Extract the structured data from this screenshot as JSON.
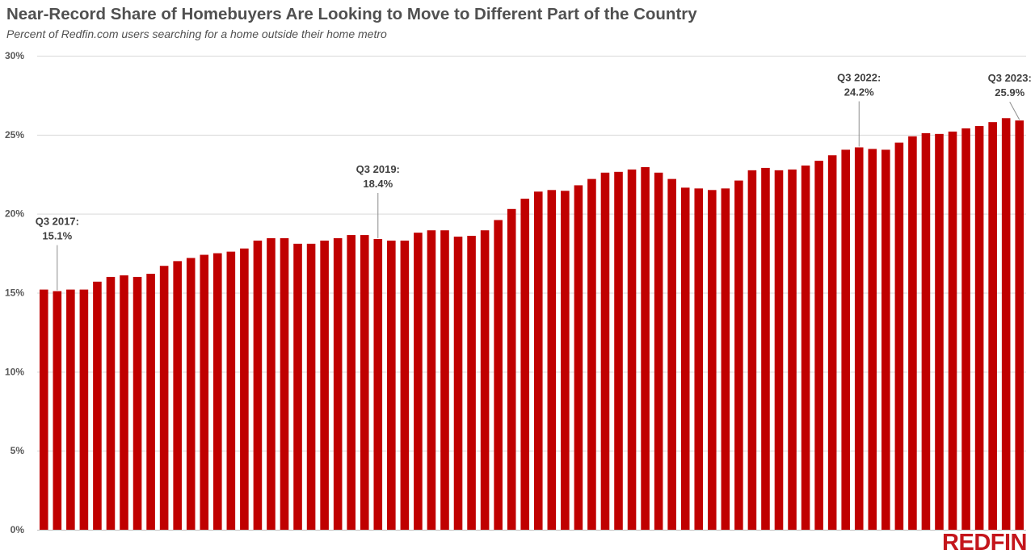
{
  "chart_data": {
    "type": "bar",
    "title": "Near-Record Share of Homebuyers Are Looking to Move to Different Part of the Country",
    "subtitle": "Percent of Redfin.com users searching for a home outside their home metro",
    "xlabel": "",
    "ylabel": "",
    "ylim": [
      0,
      30
    ],
    "yticks": [
      "0%",
      "5%",
      "10%",
      "15%",
      "20%",
      "25%",
      "30%"
    ],
    "grid": true,
    "bar_color": "#c00000",
    "values": [
      15.2,
      15.1,
      15.2,
      15.2,
      15.7,
      16.0,
      16.1,
      16.0,
      16.2,
      16.7,
      17.0,
      17.2,
      17.4,
      17.5,
      17.6,
      17.8,
      18.3,
      18.45,
      18.45,
      18.1,
      18.1,
      18.3,
      18.45,
      18.65,
      18.65,
      18.4,
      18.3,
      18.3,
      18.8,
      18.95,
      18.95,
      18.55,
      18.6,
      18.95,
      19.6,
      20.3,
      20.95,
      21.4,
      21.5,
      21.45,
      21.8,
      22.2,
      22.6,
      22.65,
      22.8,
      22.95,
      22.6,
      22.2,
      21.65,
      21.6,
      21.5,
      21.6,
      22.1,
      22.75,
      22.9,
      22.75,
      22.8,
      23.05,
      23.35,
      23.7,
      24.05,
      24.2,
      24.1,
      24.05,
      24.5,
      24.9,
      25.1,
      25.05,
      25.2,
      25.4,
      25.55,
      25.8,
      26.05,
      25.9
    ],
    "annotations": [
      {
        "bar": 2,
        "line1": "Q3 2017:",
        "line2": "15.1%"
      },
      {
        "bar": 26,
        "line1": "Q3 2019:",
        "line2": "18.4%"
      },
      {
        "bar": 62,
        "line1": "Q3 2022:",
        "line2": "24.2%"
      },
      {
        "bar": 74,
        "line1": "Q3 2023:",
        "line2": "25.9%"
      }
    ]
  },
  "logo": "REDFIN"
}
